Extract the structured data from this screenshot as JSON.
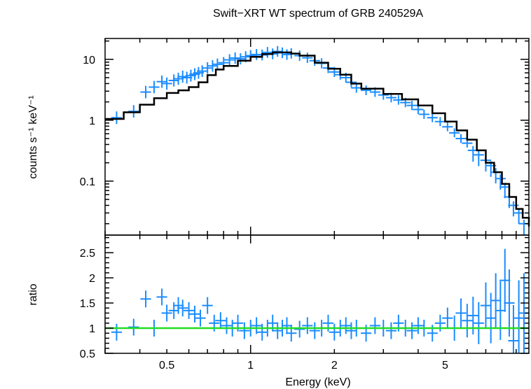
{
  "chart_data": [
    {
      "type": "scatter",
      "title": "Swift−XRT WT spectrum of GRB 240529A",
      "ylabel": "counts s⁻¹ keV⁻¹",
      "y_scale": "log",
      "x_scale": "log",
      "xlim": [
        0.3,
        10
      ],
      "ylim": [
        0.013,
        22
      ],
      "yticks": [
        {
          "value": 0.1,
          "label": "0.1"
        },
        {
          "value": 1,
          "label": "1"
        },
        {
          "value": 10,
          "label": "10"
        }
      ],
      "series": [
        {
          "color": "#1a8cff",
          "x": [
            0.33,
            0.38,
            0.42,
            0.45,
            0.48,
            0.5,
            0.53,
            0.55,
            0.57,
            0.59,
            0.61,
            0.63,
            0.65,
            0.67,
            0.7,
            0.73,
            0.76,
            0.8,
            0.84,
            0.88,
            0.92,
            0.96,
            1.0,
            1.05,
            1.1,
            1.15,
            1.2,
            1.25,
            1.3,
            1.35,
            1.4,
            1.5,
            1.6,
            1.7,
            1.8,
            1.9,
            2.0,
            2.1,
            2.2,
            2.3,
            2.4,
            2.6,
            2.8,
            3.0,
            3.2,
            3.4,
            3.6,
            3.8,
            4.0,
            4.2,
            4.5,
            4.8,
            5.1,
            5.4,
            5.7,
            6.0,
            6.3,
            6.6,
            7.0,
            7.3,
            7.6,
            7.9,
            8.2,
            8.5,
            8.8,
            9.2,
            9.6
          ],
          "y": [
            1.1,
            1.4,
            2.9,
            3.5,
            4.3,
            4.0,
            4.5,
            4.8,
            5.2,
            5.0,
            5.4,
            5.7,
            6.0,
            6.4,
            7.2,
            7.8,
            8.3,
            8.8,
            9.8,
            10.5,
            10.2,
            11.0,
            11.5,
            12.0,
            11.8,
            13.0,
            12.3,
            13.5,
            12.8,
            12.0,
            12.5,
            11.5,
            10.6,
            9.5,
            8.6,
            7.2,
            6.2,
            5.6,
            5.0,
            4.2,
            3.4,
            3.1,
            2.9,
            2.6,
            2.35,
            2.15,
            1.95,
            1.75,
            1.5,
            1.25,
            1.1,
            0.95,
            0.78,
            0.62,
            0.5,
            0.42,
            0.32,
            0.27,
            0.22,
            0.18,
            0.14,
            0.11,
            0.08,
            0.055,
            0.04,
            0.03,
            0.02
          ]
        },
        {
          "color": "#000000",
          "type": "line",
          "x": [
            0.3,
            0.35,
            0.4,
            0.45,
            0.5,
            0.55,
            0.6,
            0.65,
            0.7,
            0.75,
            0.8,
            0.9,
            1.0,
            1.1,
            1.2,
            1.3,
            1.4,
            1.5,
            1.7,
            1.9,
            2.1,
            2.3,
            2.5,
            3.0,
            3.5,
            4.0,
            4.5,
            5.0,
            5.5,
            6.0,
            6.5,
            7.0,
            7.5,
            8.0,
            8.5,
            9.0,
            9.5,
            10.0
          ],
          "y": [
            1.05,
            1.35,
            1.8,
            2.3,
            2.8,
            3.1,
            3.5,
            4.2,
            5.5,
            6.8,
            7.8,
            9.5,
            11.0,
            12.2,
            13.0,
            13.0,
            12.4,
            11.5,
            8.8,
            7.0,
            5.6,
            4.0,
            3.3,
            2.7,
            2.2,
            1.75,
            1.3,
            0.95,
            0.68,
            0.48,
            0.32,
            0.2,
            0.14,
            0.09,
            0.055,
            0.035,
            0.025,
            0.018
          ]
        }
      ]
    },
    {
      "type": "scatter",
      "xlabel": "Energy (keV)",
      "ylabel": "ratio",
      "x_scale": "log",
      "xlim": [
        0.3,
        10
      ],
      "ylim": [
        0.5,
        2.85
      ],
      "xticks": [
        {
          "value": 0.5,
          "label": "0.5"
        },
        {
          "value": 1,
          "label": "1"
        },
        {
          "value": 2,
          "label": "2"
        },
        {
          "value": 5,
          "label": "5"
        }
      ],
      "yticks": [
        {
          "value": 0.5,
          "label": "0.5"
        },
        {
          "value": 1,
          "label": "1"
        },
        {
          "value": 1.5,
          "label": "1.5"
        },
        {
          "value": 2,
          "label": "2"
        },
        {
          "value": 2.5,
          "label": "2.5"
        }
      ],
      "reference_line": {
        "y": 1,
        "color": "#22dd22"
      },
      "series": [
        {
          "color": "#1a8cff",
          "x": [
            0.33,
            0.38,
            0.42,
            0.45,
            0.48,
            0.5,
            0.53,
            0.55,
            0.57,
            0.6,
            0.63,
            0.66,
            0.7,
            0.74,
            0.78,
            0.82,
            0.86,
            0.9,
            0.95,
            1.0,
            1.05,
            1.1,
            1.15,
            1.2,
            1.25,
            1.3,
            1.35,
            1.4,
            1.5,
            1.6,
            1.7,
            1.8,
            1.9,
            2.0,
            2.1,
            2.2,
            2.3,
            2.4,
            2.6,
            2.8,
            3.0,
            3.2,
            3.4,
            3.6,
            3.8,
            4.0,
            4.2,
            4.5,
            4.8,
            5.1,
            5.4,
            5.7,
            6.0,
            6.3,
            6.6,
            7.0,
            7.3,
            7.6,
            7.9,
            8.2,
            8.5,
            8.8,
            9.2,
            9.6
          ],
          "y": [
            0.92,
            1.02,
            1.58,
            1.0,
            1.62,
            1.3,
            1.35,
            1.45,
            1.4,
            1.35,
            1.28,
            1.2,
            1.45,
            1.1,
            1.15,
            1.05,
            1.0,
            1.1,
            0.95,
            1.0,
            1.05,
            0.92,
            1.0,
            1.1,
            0.95,
            1.0,
            1.05,
            0.9,
            0.98,
            1.05,
            0.95,
            1.0,
            1.1,
            0.92,
            1.0,
            1.05,
            0.95,
            1.0,
            0.9,
            1.05,
            1.0,
            0.95,
            1.1,
            1.0,
            0.95,
            1.05,
            1.0,
            0.9,
            1.1,
            1.2,
            1.0,
            1.3,
            1.15,
            1.25,
            1.1,
            1.45,
            1.2,
            1.55,
            1.35,
            1.95,
            1.5,
            0.75,
            1.2,
            1.3
          ]
        }
      ]
    }
  ]
}
